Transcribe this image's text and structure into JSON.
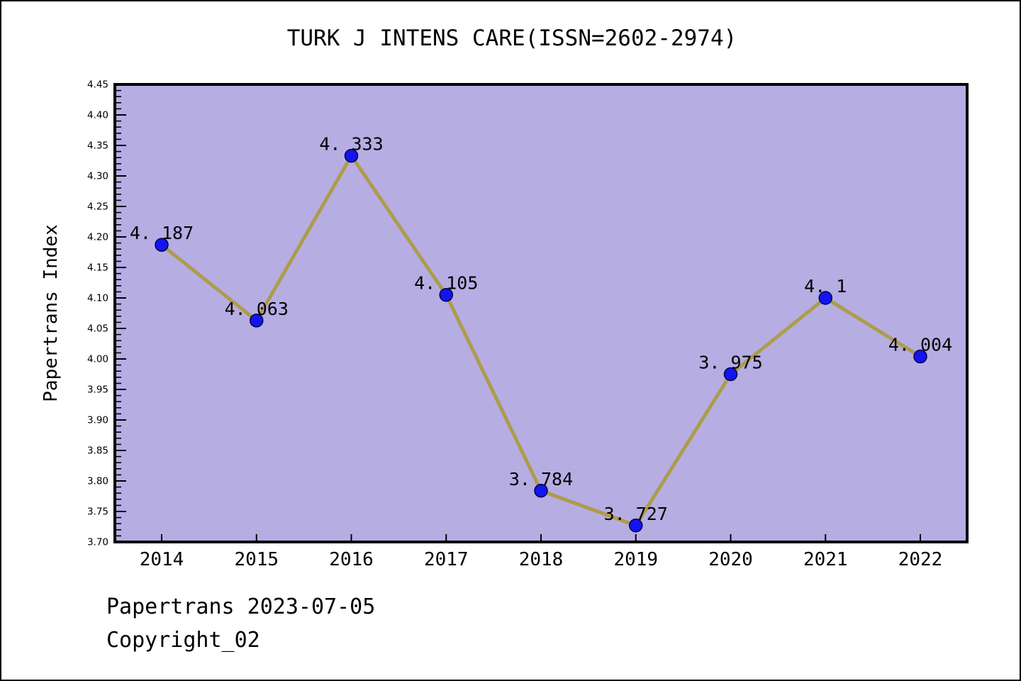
{
  "page": {
    "footer_line1": "Papertrans 2023-07-05",
    "footer_line2": "Copyright_02"
  },
  "chart_data": {
    "type": "line",
    "title": "TURK J INTENS CARE(ISSN=2602-2974)",
    "xlabel": "",
    "ylabel": "Papertrans Index",
    "categories": [
      "2014",
      "2015",
      "2016",
      "2017",
      "2018",
      "2019",
      "2020",
      "2021",
      "2022"
    ],
    "values": [
      4.187,
      4.063,
      4.333,
      4.105,
      3.784,
      3.727,
      3.975,
      4.1,
      4.004
    ],
    "point_labels": [
      "4. 187",
      "4. 063",
      "4. 333",
      "4. 105",
      "3. 784",
      "3. 727",
      "3. 975",
      "4. 1",
      "4. 004"
    ],
    "ylim": [
      3.7,
      4.45
    ],
    "ytick_step": 0.05,
    "ytick_minor_step": 0.01,
    "ytick_label_format": "2dp",
    "grid": false,
    "legend_position": "none",
    "colors": {
      "plot_background": "#b6ade3",
      "line": "#ad9c4b",
      "marker_fill": "#1414f0",
      "marker_edge": "#000050",
      "axis": "#000000",
      "text": "#000000"
    }
  }
}
